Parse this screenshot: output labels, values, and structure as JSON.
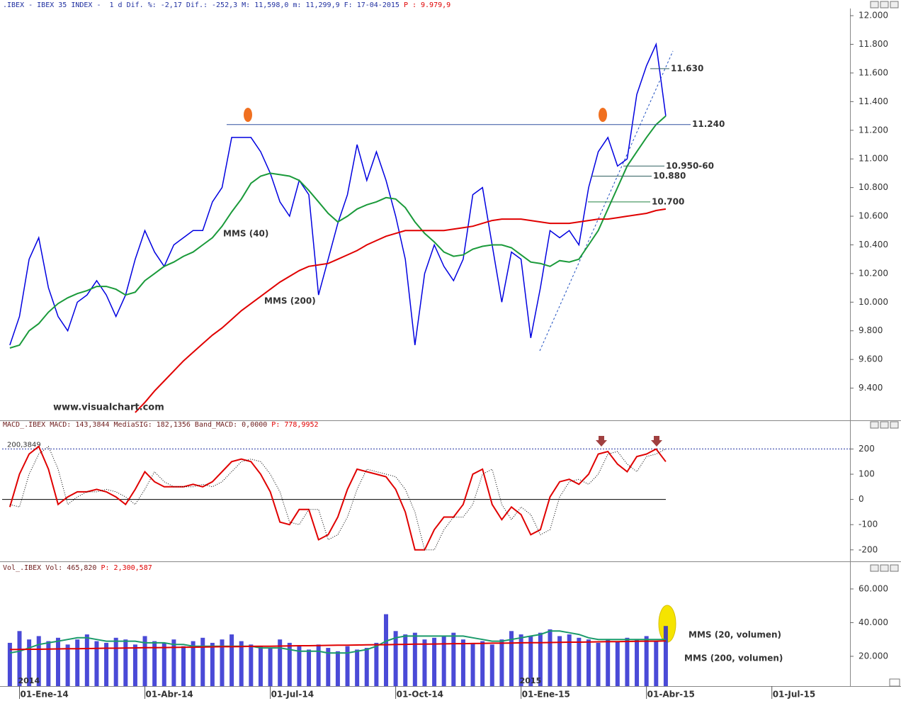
{
  "chart_data": [
    {
      "type": "line",
      "title": ".IBEX - IBEX 35 INDEX -  1 d Dif. %: -2,17 Dif.: -252,3 M: 11,598,0 m: 11,299,9 F: 17-04-2015 ",
      "subtitle": "P : 9.979,9",
      "x": [
        -1,
        0,
        1,
        2,
        3,
        4,
        5,
        6,
        7,
        8,
        9,
        10,
        11,
        12,
        13,
        14,
        15,
        16,
        17,
        18,
        19,
        20,
        21,
        22,
        23,
        24,
        25,
        26,
        27,
        28,
        29,
        30,
        31,
        32,
        33,
        34,
        35,
        36,
        37,
        38,
        39,
        40,
        41,
        42,
        43,
        44,
        45,
        46,
        47,
        48,
        49,
        50,
        51,
        52,
        53,
        54,
        55,
        56,
        57,
        58,
        59,
        60,
        61,
        62,
        63,
        64,
        65,
        66,
        67
      ],
      "xlim": [
        -1.8,
        86.1
      ],
      "ylim": [
        9190,
        12050
      ],
      "yticks": [
        {
          "value": 9400,
          "label": "9.400"
        },
        {
          "value": 9600,
          "label": "9.600"
        },
        {
          "value": 9800,
          "label": "9.800"
        },
        {
          "value": 10000,
          "label": "10.000"
        },
        {
          "value": 10200,
          "label": "10.200"
        },
        {
          "value": 10400,
          "label": "10.400"
        },
        {
          "value": 10600,
          "label": "10.600"
        },
        {
          "value": 10800,
          "label": "10.800"
        },
        {
          "value": 11000,
          "label": "11.000"
        },
        {
          "value": 11200,
          "label": "11.200"
        },
        {
          "value": 11400,
          "label": "11.400"
        },
        {
          "value": 11600,
          "label": "11.600"
        },
        {
          "value": 11800,
          "label": "11.800"
        },
        {
          "value": 12000,
          "label": "12.000"
        }
      ],
      "series": [
        {
          "color": "#0000e0",
          "values": [
            9700,
            9900,
            10300,
            10450,
            10100,
            9900,
            9800,
            10000,
            10050,
            10150,
            10050,
            9900,
            10050,
            10300,
            10500,
            10350,
            10250,
            10400,
            10450,
            10500,
            10500,
            10700,
            10800,
            11150,
            11150,
            11150,
            11050,
            10900,
            10700,
            10600,
            10850,
            10750,
            10050,
            10300,
            10550,
            10750,
            11100,
            10850,
            11050,
            10850,
            10600,
            10300,
            9700,
            10200,
            10400,
            10250,
            10150,
            10300,
            10750,
            10800,
            10400,
            10000,
            10350,
            10300,
            9750,
            10100,
            10500,
            10450,
            10500,
            10400,
            10800,
            11050,
            11150,
            10950,
            11000,
            11450,
            11650,
            11800,
            11300
          ]
        },
        {
          "name": "MMS (40)",
          "color": "#1a9a3a",
          "values": [
            9680,
            9700,
            9800,
            9850,
            9930,
            9990,
            10030,
            10060,
            10080,
            10110,
            10110,
            10090,
            10050,
            10070,
            10150,
            10200,
            10250,
            10280,
            10320,
            10350,
            10400,
            10450,
            10530,
            10630,
            10720,
            10830,
            10880,
            10900,
            10890,
            10880,
            10850,
            10780,
            10700,
            10620,
            10560,
            10600,
            10650,
            10680,
            10700,
            10730,
            10720,
            10660,
            10560,
            10480,
            10420,
            10350,
            10320,
            10330,
            10370,
            10390,
            10400,
            10400,
            10380,
            10330,
            10280,
            10270,
            10250,
            10290,
            10280,
            10300,
            10400,
            10500,
            10650,
            10800,
            10950,
            11050,
            11150,
            11240,
            11300
          ]
        },
        {
          "name": "MMS (200)",
          "color": "#e00000",
          "values": [
            null,
            null,
            null,
            null,
            null,
            null,
            null,
            null,
            null,
            null,
            null,
            null,
            null,
            9230,
            9300,
            9380,
            9450,
            9520,
            9590,
            9650,
            9710,
            9770,
            9820,
            9880,
            9940,
            9990,
            10040,
            10090,
            10140,
            10180,
            10220,
            10250,
            10260,
            10270,
            10300,
            10330,
            10360,
            10400,
            10430,
            10460,
            10480,
            10500,
            10500,
            10500,
            10500,
            10500,
            10510,
            10520,
            10530,
            10550,
            10570,
            10580,
            10580,
            10580,
            10570,
            10560,
            10550,
            10550,
            10550,
            10560,
            10570,
            10580,
            10580,
            10590,
            10600,
            10610,
            10620,
            10640,
            10650
          ]
        }
      ],
      "annotations": [
        {
          "value": 11630,
          "label": "11.630"
        },
        {
          "value": 11240,
          "label": "11.240"
        },
        {
          "value": 10950,
          "label": "10.950-60"
        },
        {
          "value": 10880,
          "label": "10.880"
        },
        {
          "value": 10700,
          "label": "10.700"
        }
      ],
      "watermark": "www.visualchart.com"
    },
    {
      "type": "line",
      "title": "MACD_.IBEX MACD: 143,3844 MediaSIG: 182,1356 Band_MACD: 0,0000 ",
      "subtitle": "P: 778,9952",
      "x": [
        -1,
        0,
        1,
        2,
        3,
        4,
        5,
        6,
        7,
        8,
        9,
        10,
        11,
        12,
        13,
        14,
        15,
        16,
        17,
        18,
        19,
        20,
        21,
        22,
        23,
        24,
        25,
        26,
        27,
        28,
        29,
        30,
        31,
        32,
        33,
        34,
        35,
        36,
        37,
        38,
        39,
        40,
        41,
        42,
        43,
        44,
        45,
        46,
        47,
        48,
        49,
        50,
        51,
        52,
        53,
        54,
        55,
        56,
        57,
        58,
        59,
        60,
        61,
        62,
        63,
        64,
        65,
        66,
        67
      ],
      "xlim": [
        -1.8,
        86.1
      ],
      "ylim": [
        -240,
        280
      ],
      "yticks": [
        -200,
        -100,
        0,
        100,
        200
      ],
      "reference": {
        "value": 200.3849,
        "label": "200,3849"
      },
      "series": [
        {
          "color": "#e00000",
          "values": [
            -30,
            100,
            180,
            210,
            120,
            -20,
            10,
            30,
            30,
            40,
            30,
            10,
            -20,
            40,
            110,
            70,
            50,
            50,
            50,
            60,
            50,
            70,
            110,
            150,
            160,
            150,
            100,
            30,
            -90,
            -100,
            -40,
            -40,
            -160,
            -140,
            -70,
            40,
            120,
            110,
            100,
            90,
            40,
            -50,
            -200,
            -200,
            -120,
            -70,
            -70,
            -20,
            100,
            120,
            -20,
            -80,
            -30,
            -60,
            -140,
            -120,
            10,
            70,
            80,
            60,
            100,
            180,
            190,
            140,
            110,
            170,
            180,
            200,
            150
          ]
        },
        {
          "color": "#000000",
          "dotted": true,
          "values": [
            -20,
            -30,
            100,
            180,
            210,
            120,
            -20,
            10,
            30,
            30,
            40,
            30,
            10,
            -20,
            40,
            110,
            70,
            50,
            50,
            50,
            60,
            50,
            70,
            110,
            150,
            160,
            150,
            100,
            30,
            -90,
            -100,
            -40,
            -40,
            -160,
            -140,
            -70,
            40,
            120,
            110,
            100,
            90,
            40,
            -50,
            -200,
            -200,
            -120,
            -70,
            -70,
            -20,
            100,
            120,
            -20,
            -80,
            -30,
            -60,
            -140,
            -120,
            10,
            70,
            80,
            60,
            100,
            180,
            190,
            140,
            110,
            170,
            180,
            200
          ]
        }
      ]
    },
    {
      "type": "bar",
      "title": "Vol_.IBEX Vol: 465,820 ",
      "subtitle": "P: 2,300,587",
      "x": [
        -1,
        0,
        1,
        2,
        3,
        4,
        5,
        6,
        7,
        8,
        9,
        10,
        11,
        12,
        13,
        14,
        15,
        16,
        17,
        18,
        19,
        20,
        21,
        22,
        23,
        24,
        25,
        26,
        27,
        28,
        29,
        30,
        31,
        32,
        33,
        34,
        35,
        36,
        37,
        38,
        39,
        40,
        41,
        42,
        43,
        44,
        45,
        46,
        47,
        48,
        49,
        50,
        51,
        52,
        53,
        54,
        55,
        56,
        57,
        58,
        59,
        60,
        61,
        62,
        63,
        64,
        65,
        66,
        67
      ],
      "xlim": [
        -1.8,
        86.1
      ],
      "ylim": [
        2300,
        68800
      ],
      "yticks": [
        {
          "value": 20000,
          "label": "20.000"
        },
        {
          "value": 40000,
          "label": "40.000"
        },
        {
          "value": 60000,
          "label": "60.000"
        }
      ],
      "color": "#2a2ad0",
      "values": [
        28000,
        35000,
        30000,
        32000,
        29000,
        31000,
        27000,
        30000,
        33000,
        29000,
        28000,
        31000,
        30000,
        27000,
        32000,
        29000,
        28000,
        30000,
        26000,
        29000,
        31000,
        28000,
        30000,
        33000,
        29000,
        27000,
        26000,
        25000,
        30000,
        28000,
        26000,
        24000,
        27000,
        25000,
        23000,
        26000,
        24000,
        25000,
        28000,
        45000,
        35000,
        33000,
        34000,
        30000,
        31000,
        32000,
        34000,
        30000,
        28000,
        29000,
        27000,
        30000,
        35000,
        33000,
        32000,
        34000,
        36000,
        32000,
        33000,
        31000,
        30000,
        28000,
        30000,
        29000,
        31000,
        30000,
        32000,
        29000,
        38000
      ],
      "series": [
        {
          "name": "MMS (20, volumen)",
          "color": "#1a9a6a",
          "values": [
            22000,
            23000,
            25000,
            27000,
            28000,
            29000,
            30000,
            31000,
            31000,
            30000,
            29000,
            29000,
            29000,
            29000,
            28000,
            28000,
            28000,
            27000,
            27000,
            26000,
            26000,
            26000,
            26000,
            26000,
            26000,
            26000,
            25000,
            25000,
            25000,
            24000,
            23000,
            23000,
            23000,
            22000,
            22000,
            22000,
            23000,
            24000,
            26000,
            29000,
            31000,
            32000,
            32000,
            32000,
            32000,
            32000,
            32000,
            32000,
            31000,
            30000,
            29000,
            29000,
            30000,
            31000,
            32000,
            33000,
            35000,
            35000,
            34000,
            33000,
            31000,
            30000,
            30000,
            30000,
            30000,
            30000,
            30000,
            30000,
            30000
          ]
        },
        {
          "name": "MMS (200, volumen)",
          "color": "#e00000",
          "values": [
            24000,
            24100,
            24200,
            24200,
            24300,
            24400,
            24500,
            24500,
            24600,
            24700,
            24800,
            24800,
            24900,
            25000,
            25100,
            25100,
            25200,
            25300,
            25400,
            25400,
            25500,
            25600,
            25700,
            25700,
            25800,
            25900,
            26000,
            26000,
            26100,
            26200,
            26300,
            26300,
            26400,
            26500,
            26600,
            26600,
            26700,
            26800,
            26900,
            26900,
            27000,
            27100,
            27200,
            27200,
            27300,
            27400,
            27500,
            27500,
            27600,
            27700,
            27800,
            27800,
            27900,
            28000,
            28100,
            28100,
            28200,
            28300,
            28400,
            28400,
            28500,
            28600,
            28700,
            28700,
            28800,
            28900,
            29000,
            29000,
            29100
          ]
        }
      ],
      "xticks": [
        {
          "value": 0,
          "label": "01-Ene-14"
        },
        {
          "value": 13,
          "label": "01-Abr-14"
        },
        {
          "value": 26,
          "label": "01-Jul-14"
        },
        {
          "value": 39,
          "label": "01-Oct-14"
        },
        {
          "value": 52,
          "label": "01-Ene-15"
        },
        {
          "value": 65,
          "label": "01-Abr-15"
        },
        {
          "value": 78,
          "label": "01-Jul-15"
        }
      ],
      "year_labels": [
        "2014",
        "2015"
      ]
    }
  ]
}
